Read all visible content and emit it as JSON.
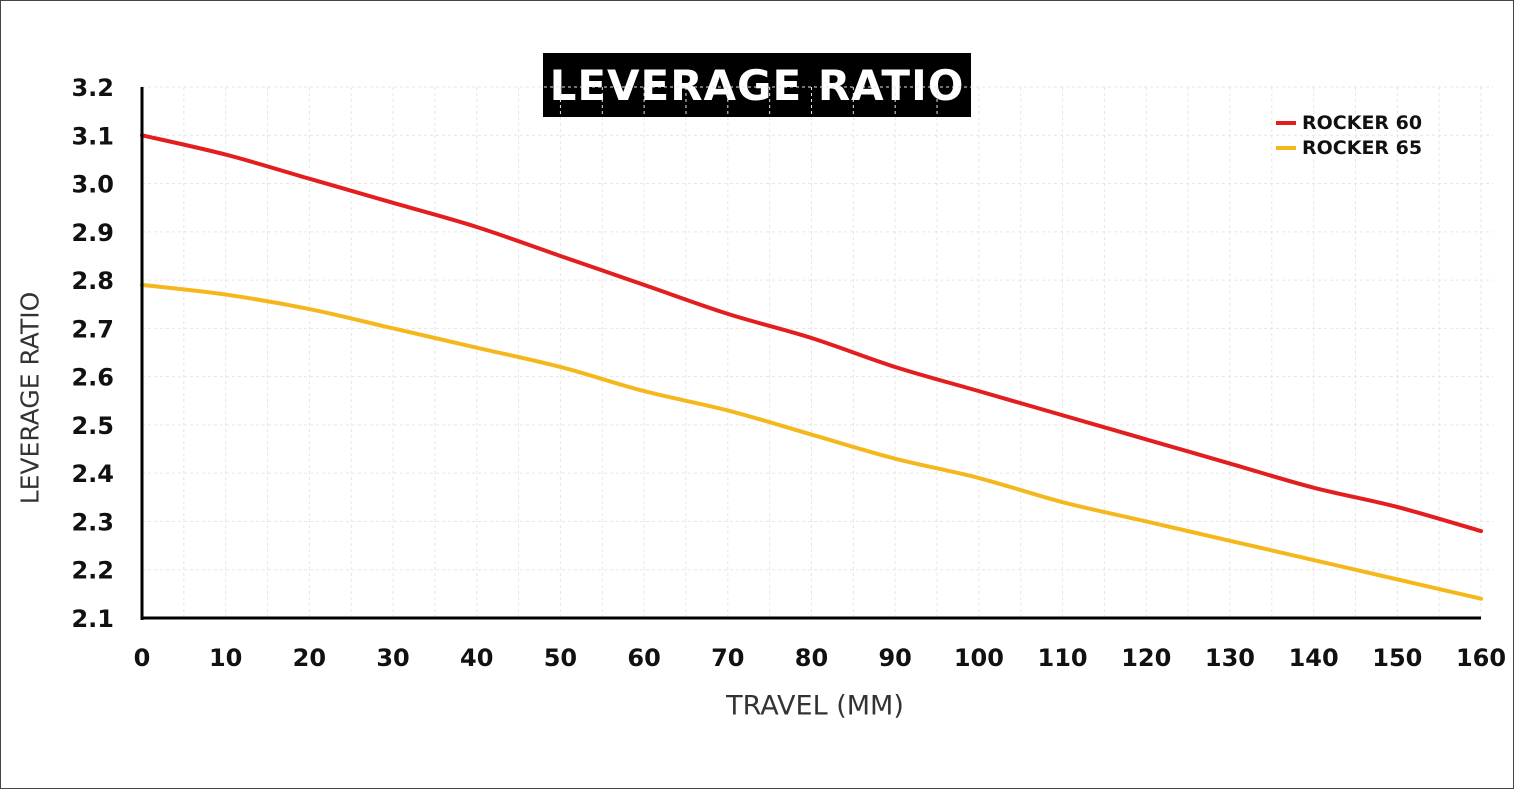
{
  "chart_data": {
    "type": "line",
    "title": "LEVERAGE RATIO",
    "xlabel": "TRAVEL (MM)",
    "ylabel": "LEVERAGE RATIO",
    "xlim": [
      0,
      160
    ],
    "ylim": [
      2.1,
      3.2
    ],
    "xticks": [
      0,
      10,
      20,
      30,
      40,
      50,
      60,
      70,
      80,
      90,
      100,
      110,
      120,
      130,
      140,
      150,
      160
    ],
    "yticks": [
      "2.1",
      "2.2",
      "2.3",
      "2.4",
      "2.5",
      "2.6",
      "2.7",
      "2.8",
      "2.9",
      "3.0",
      "3.1",
      "3.2"
    ],
    "grid": true,
    "legend_position": "top-right",
    "x": [
      0,
      10,
      20,
      30,
      40,
      50,
      60,
      70,
      80,
      90,
      100,
      110,
      120,
      130,
      140,
      150,
      160
    ],
    "series": [
      {
        "name": "ROCKER 60",
        "color": "#e31e1e",
        "values": [
          3.1,
          3.06,
          3.01,
          2.96,
          2.91,
          2.85,
          2.79,
          2.73,
          2.68,
          2.62,
          2.57,
          2.52,
          2.47,
          2.42,
          2.37,
          2.33,
          2.28
        ]
      },
      {
        "name": "ROCKER 65",
        "color": "#f4b81c",
        "values": [
          2.79,
          2.77,
          2.74,
          2.7,
          2.66,
          2.62,
          2.57,
          2.53,
          2.48,
          2.43,
          2.39,
          2.34,
          2.3,
          2.26,
          2.22,
          2.18,
          2.14
        ]
      }
    ]
  }
}
